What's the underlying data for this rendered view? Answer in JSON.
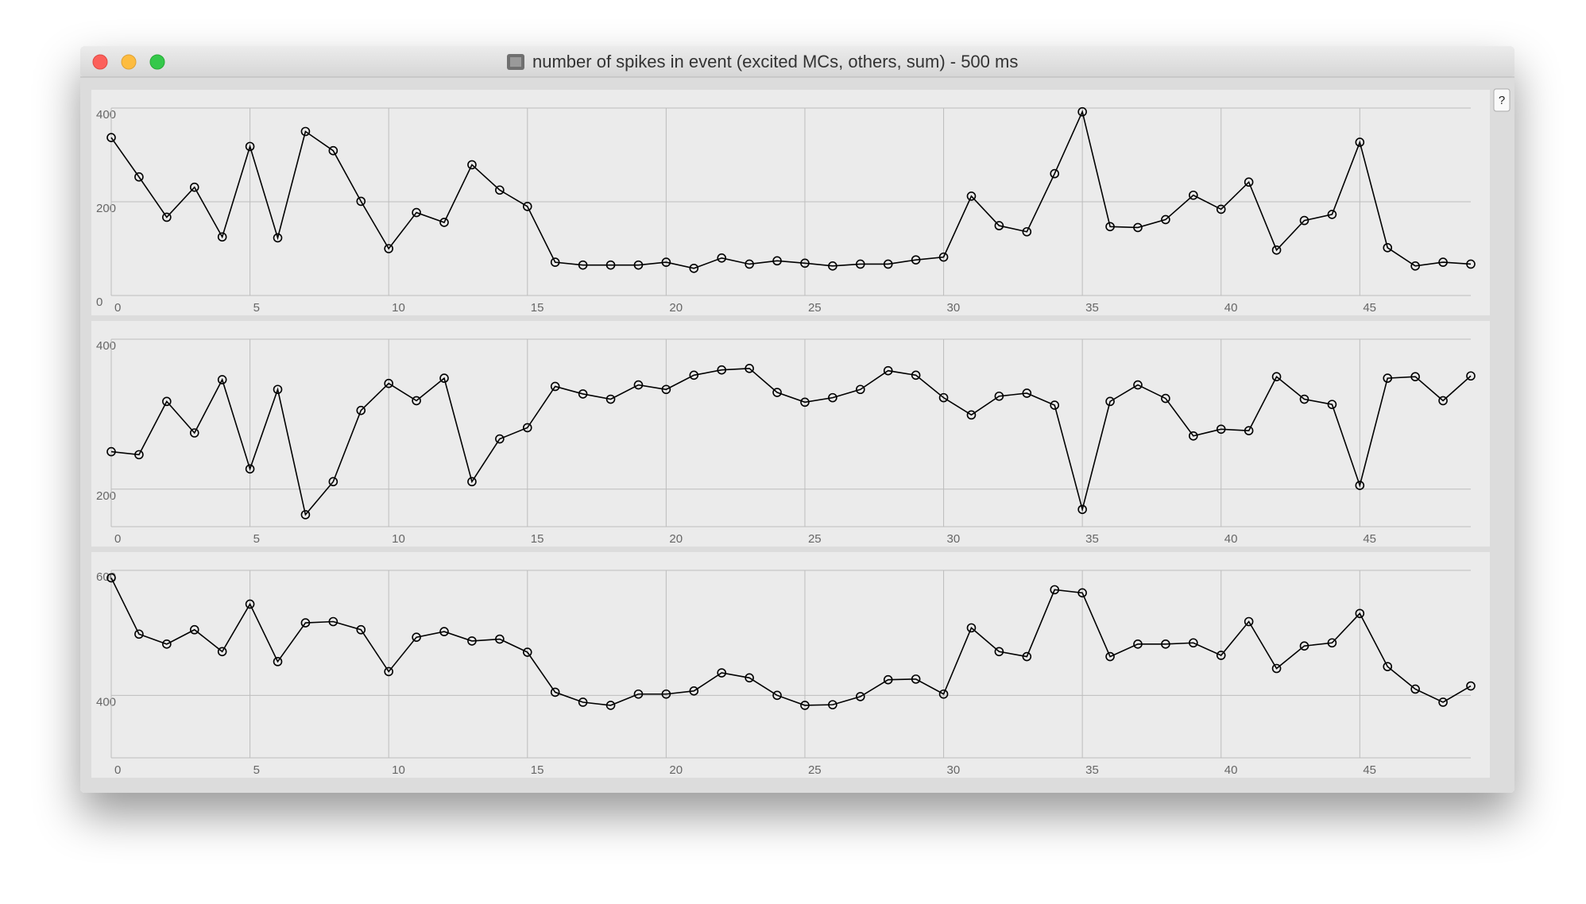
{
  "window": {
    "title": "number of spikes in event (excited MCs, others, sum) - 500 ms",
    "help_button": "?"
  },
  "chart_data": [
    {
      "type": "line",
      "color": "#000000",
      "marker": "circle",
      "grid": true,
      "x": [
        0,
        1,
        2,
        3,
        4,
        5,
        6,
        7,
        8,
        9,
        10,
        11,
        12,
        13,
        14,
        15,
        16,
        17,
        18,
        19,
        20,
        21,
        22,
        23,
        24,
        25,
        26,
        27,
        28,
        29,
        30,
        31,
        32,
        33,
        34,
        35,
        36,
        37,
        38,
        39,
        40,
        41,
        42,
        43,
        44,
        45,
        46,
        47,
        48,
        49
      ],
      "values": [
        337,
        253,
        167,
        231,
        125,
        318,
        123,
        350,
        309,
        201,
        100,
        177,
        156,
        279,
        225,
        190,
        71,
        65,
        65,
        65,
        71,
        58,
        80,
        67,
        74,
        69,
        63,
        67,
        67,
        76,
        82,
        212,
        149,
        136,
        260,
        392,
        147,
        145,
        162,
        214,
        184,
        242,
        97,
        160,
        173,
        327,
        102,
        63,
        71,
        67
      ],
      "xlim": [
        0,
        49
      ],
      "xticks": [
        0,
        5,
        10,
        15,
        20,
        25,
        30,
        35,
        40,
        45
      ],
      "ylim": [
        0,
        400
      ],
      "yticks": [
        0,
        200,
        400
      ]
    },
    {
      "type": "line",
      "color": "#000000",
      "marker": "circle",
      "grid": true,
      "x": [
        0,
        1,
        2,
        3,
        4,
        5,
        6,
        7,
        8,
        9,
        10,
        11,
        12,
        13,
        14,
        15,
        16,
        17,
        18,
        19,
        20,
        21,
        22,
        23,
        24,
        25,
        26,
        27,
        28,
        29,
        30,
        31,
        32,
        33,
        34,
        35,
        36,
        37,
        38,
        39,
        40,
        41,
        42,
        43,
        44,
        45,
        46,
        47,
        48,
        49
      ],
      "values": [
        250,
        246,
        317,
        275,
        346,
        227,
        333,
        166,
        210,
        305,
        341,
        318,
        348,
        210,
        267,
        282,
        337,
        327,
        320,
        339,
        333,
        352,
        359,
        361,
        329,
        316,
        322,
        333,
        358,
        352,
        322,
        299,
        324,
        328,
        312,
        173,
        317,
        339,
        321,
        271,
        280,
        278,
        350,
        320,
        313,
        205,
        348,
        350,
        318,
        351
      ],
      "xlim": [
        0,
        49
      ],
      "xticks": [
        0,
        5,
        10,
        15,
        20,
        25,
        30,
        35,
        40,
        45
      ],
      "ylim": [
        150,
        400
      ],
      "yticks": [
        200,
        400
      ]
    },
    {
      "type": "line",
      "color": "#000000",
      "marker": "circle",
      "grid": true,
      "x": [
        0,
        1,
        2,
        3,
        4,
        5,
        6,
        7,
        8,
        9,
        10,
        11,
        12,
        13,
        14,
        15,
        16,
        17,
        18,
        19,
        20,
        21,
        22,
        23,
        24,
        25,
        26,
        27,
        28,
        29,
        30,
        31,
        32,
        33,
        34,
        35,
        36,
        37,
        38,
        39,
        40,
        41,
        42,
        43,
        44,
        45,
        46,
        47,
        48,
        49
      ],
      "values": [
        588,
        498,
        482,
        505,
        470,
        546,
        454,
        516,
        518,
        505,
        438,
        493,
        502,
        487,
        490,
        469,
        405,
        389,
        384,
        402,
        402,
        407,
        436,
        428,
        400,
        384,
        385,
        398,
        425,
        426,
        402,
        508,
        470,
        462,
        569,
        564,
        462,
        482,
        482,
        484,
        464,
        518,
        443,
        479,
        484,
        531,
        446,
        410,
        389,
        415
      ],
      "xlim": [
        0,
        49
      ],
      "xticks": [
        0,
        5,
        10,
        15,
        20,
        25,
        30,
        35,
        40,
        45
      ],
      "ylim": [
        300,
        600
      ],
      "yticks": [
        400,
        600
      ]
    }
  ]
}
